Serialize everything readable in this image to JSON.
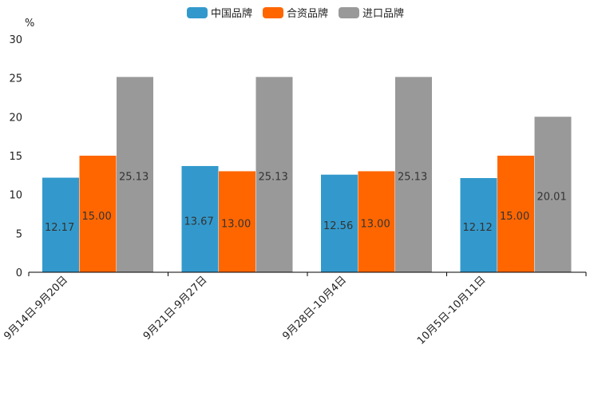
{
  "chart_data": {
    "type": "bar",
    "ylabel": "%",
    "ylim": [
      0,
      30
    ],
    "yticks": [
      "0",
      "5",
      "10",
      "15",
      "20",
      "25",
      "30"
    ],
    "categories": [
      "9月14日-9月20日",
      "9月21日-9月27日",
      "9月28日-10月4日",
      "10月5日-10月11日"
    ],
    "series": [
      {
        "name": "中国品牌",
        "color": "#3399cc",
        "values": [
          12.17,
          13.67,
          12.56,
          12.12
        ],
        "labels": [
          "12.17",
          "13.67",
          "12.56",
          "12.12"
        ]
      },
      {
        "name": "合资品牌",
        "color": "#ff6600",
        "values": [
          15.0,
          13.0,
          13.0,
          15.0
        ],
        "labels": [
          "15.00",
          "13.00",
          "13.00",
          "15.00"
        ]
      },
      {
        "name": "进口品牌",
        "color": "#999999",
        "values": [
          25.13,
          25.13,
          25.13,
          20.01
        ],
        "labels": [
          "25.13",
          "25.13",
          "25.13",
          "20.01"
        ]
      }
    ],
    "legend": "top-center",
    "grid": false
  }
}
